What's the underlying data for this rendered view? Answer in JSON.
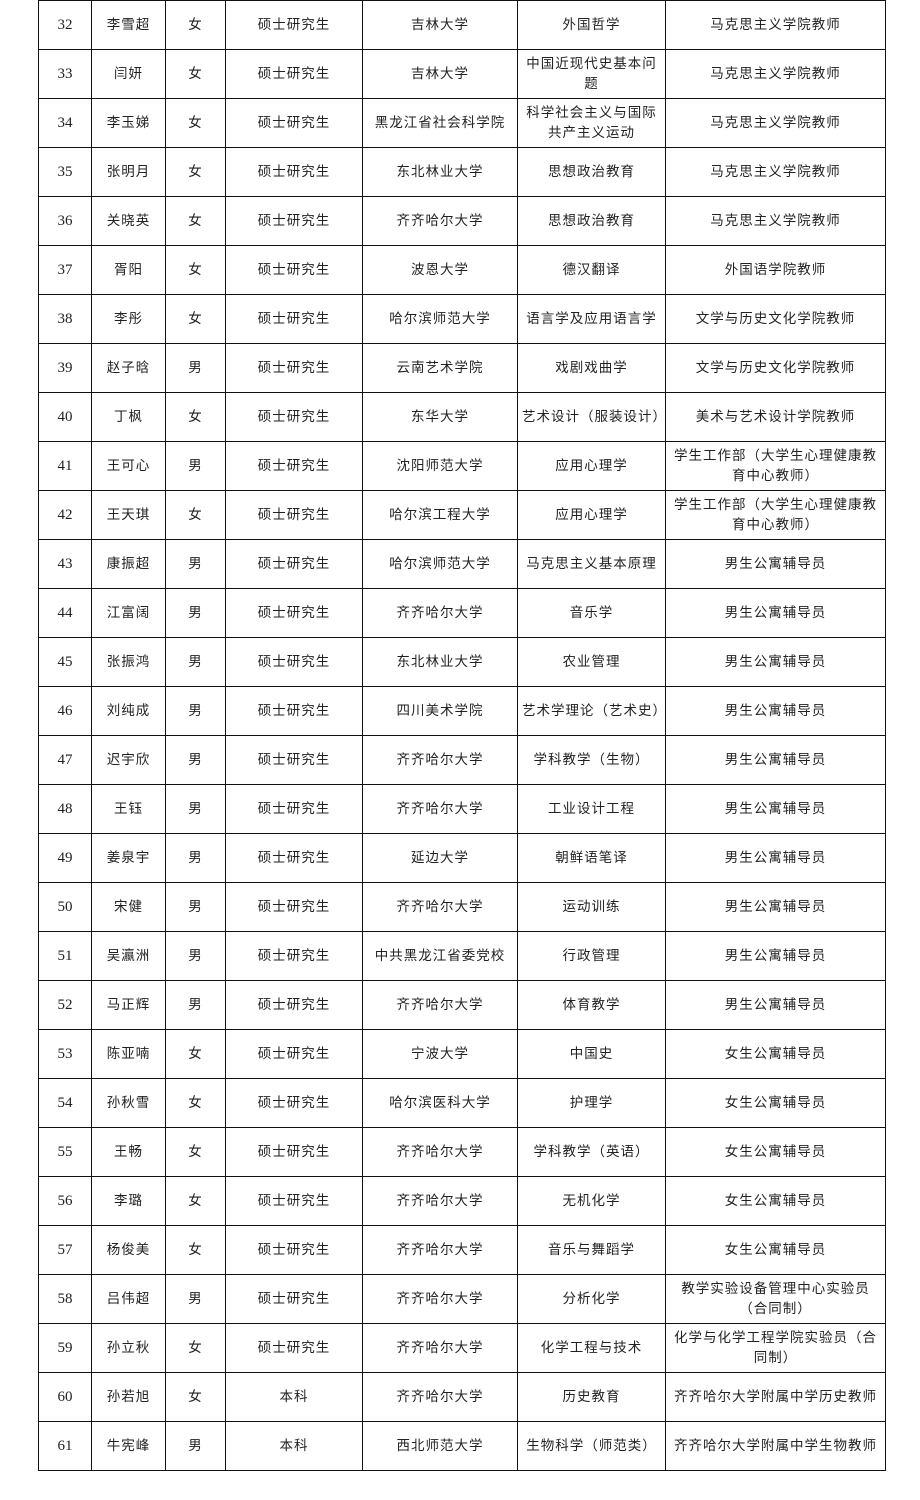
{
  "rows": [
    [
      "32",
      "李雪超",
      "女",
      "硕士研究生",
      "吉林大学",
      "外国哲学",
      "马克思主义学院教师"
    ],
    [
      "33",
      "闫妍",
      "女",
      "硕士研究生",
      "吉林大学",
      "中国近现代史基本问题",
      "马克思主义学院教师"
    ],
    [
      "34",
      "李玉娣",
      "女",
      "硕士研究生",
      "黑龙江省社会科学院",
      "科学社会主义与国际共产主义运动",
      "马克思主义学院教师"
    ],
    [
      "35",
      "张明月",
      "女",
      "硕士研究生",
      "东北林业大学",
      "思想政治教育",
      "马克思主义学院教师"
    ],
    [
      "36",
      "关晓英",
      "女",
      "硕士研究生",
      "齐齐哈尔大学",
      "思想政治教育",
      "马克思主义学院教师"
    ],
    [
      "37",
      "胥阳",
      "女",
      "硕士研究生",
      "波恩大学",
      "德汉翻译",
      "外国语学院教师"
    ],
    [
      "38",
      "李彤",
      "女",
      "硕士研究生",
      "哈尔滨师范大学",
      "语言学及应用语言学",
      "文学与历史文化学院教师"
    ],
    [
      "39",
      "赵子晗",
      "男",
      "硕士研究生",
      "云南艺术学院",
      "戏剧戏曲学",
      "文学与历史文化学院教师"
    ],
    [
      "40",
      "丁枫",
      "女",
      "硕士研究生",
      "东华大学",
      "艺术设计（服装设计）",
      "美术与艺术设计学院教师"
    ],
    [
      "41",
      "王可心",
      "男",
      "硕士研究生",
      "沈阳师范大学",
      "应用心理学",
      "学生工作部（大学生心理健康教育中心教师）"
    ],
    [
      "42",
      "王天琪",
      "女",
      "硕士研究生",
      "哈尔滨工程大学",
      "应用心理学",
      "学生工作部（大学生心理健康教育中心教师）"
    ],
    [
      "43",
      "康振超",
      "男",
      "硕士研究生",
      "哈尔滨师范大学",
      "马克思主义基本原理",
      "男生公寓辅导员"
    ],
    [
      "44",
      "江富阔",
      "男",
      "硕士研究生",
      "齐齐哈尔大学",
      "音乐学",
      "男生公寓辅导员"
    ],
    [
      "45",
      "张振鸿",
      "男",
      "硕士研究生",
      "东北林业大学",
      "农业管理",
      "男生公寓辅导员"
    ],
    [
      "46",
      "刘纯成",
      "男",
      "硕士研究生",
      "四川美术学院",
      "艺术学理论（艺术史）",
      "男生公寓辅导员"
    ],
    [
      "47",
      "迟宇欣",
      "男",
      "硕士研究生",
      "齐齐哈尔大学",
      "学科教学（生物）",
      "男生公寓辅导员"
    ],
    [
      "48",
      "王钰",
      "男",
      "硕士研究生",
      "齐齐哈尔大学",
      "工业设计工程",
      "男生公寓辅导员"
    ],
    [
      "49",
      "姜泉宇",
      "男",
      "硕士研究生",
      "延边大学",
      "朝鲜语笔译",
      "男生公寓辅导员"
    ],
    [
      "50",
      "宋健",
      "男",
      "硕士研究生",
      "齐齐哈尔大学",
      "运动训练",
      "男生公寓辅导员"
    ],
    [
      "51",
      "吴瀛洲",
      "男",
      "硕士研究生",
      "中共黑龙江省委党校",
      "行政管理",
      "男生公寓辅导员"
    ],
    [
      "52",
      "马正辉",
      "男",
      "硕士研究生",
      "齐齐哈尔大学",
      "体育教学",
      "男生公寓辅导员"
    ],
    [
      "53",
      "陈亚喃",
      "女",
      "硕士研究生",
      "宁波大学",
      "中国史",
      "女生公寓辅导员"
    ],
    [
      "54",
      "孙秋雪",
      "女",
      "硕士研究生",
      "哈尔滨医科大学",
      "护理学",
      "女生公寓辅导员"
    ],
    [
      "55",
      "王畅",
      "女",
      "硕士研究生",
      "齐齐哈尔大学",
      "学科教学（英语）",
      "女生公寓辅导员"
    ],
    [
      "56",
      "李璐",
      "女",
      "硕士研究生",
      "齐齐哈尔大学",
      "无机化学",
      "女生公寓辅导员"
    ],
    [
      "57",
      "杨俊美",
      "女",
      "硕士研究生",
      "齐齐哈尔大学",
      "音乐与舞蹈学",
      "女生公寓辅导员"
    ],
    [
      "58",
      "吕伟超",
      "男",
      "硕士研究生",
      "齐齐哈尔大学",
      "分析化学",
      "教学实验设备管理中心实验员（合同制）"
    ],
    [
      "59",
      "孙立秋",
      "女",
      "硕士研究生",
      "齐齐哈尔大学",
      "化学工程与技术",
      "化学与化学工程学院实验员（合同制）"
    ],
    [
      "60",
      "孙若旭",
      "女",
      "本科",
      "齐齐哈尔大学",
      "历史教育",
      "齐齐哈尔大学附属中学历史教师"
    ],
    [
      "61",
      "牛宪峰",
      "男",
      "本科",
      "西北师范大学",
      "生物科学（师范类）",
      "齐齐哈尔大学附属中学生物教师"
    ]
  ]
}
